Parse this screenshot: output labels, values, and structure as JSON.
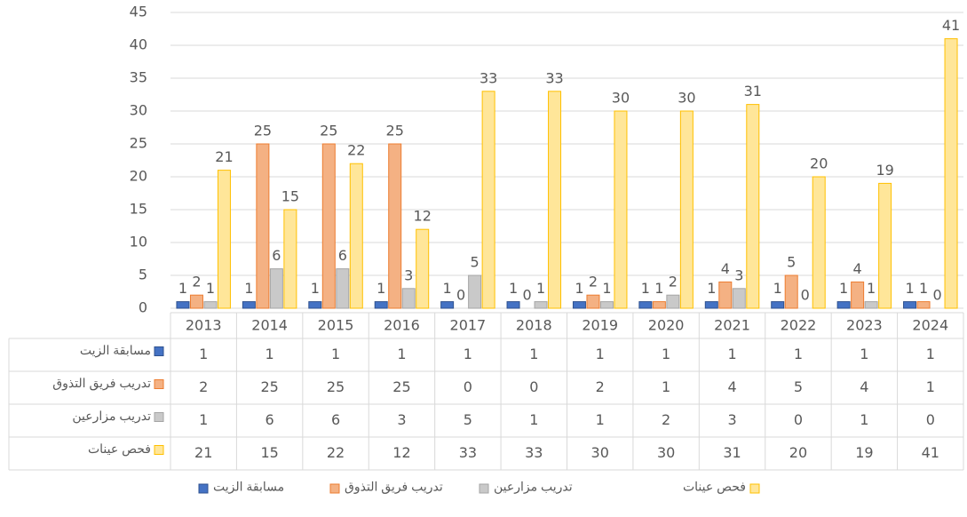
{
  "chart_data": {
    "type": "bar",
    "categories": [
      "2013",
      "2014",
      "2015",
      "2016",
      "2017",
      "2018",
      "2019",
      "2020",
      "2021",
      "2022",
      "2023",
      "2024"
    ],
    "series": [
      {
        "name": "مسابقة الزيت",
        "color": "#4472c4",
        "edge": "#2f528f",
        "values": [
          1,
          1,
          1,
          1,
          1,
          1,
          1,
          1,
          1,
          1,
          1,
          1
        ]
      },
      {
        "name": "تدريب فريق التذوق",
        "color": "#f4b183",
        "edge": "#ed7d31",
        "values": [
          2,
          25,
          25,
          25,
          0,
          0,
          2,
          1,
          4,
          5,
          4,
          1
        ]
      },
      {
        "name": "تدريب مزارعين",
        "color": "#c9c9c9",
        "edge": "#a5a5a5",
        "values": [
          1,
          6,
          6,
          3,
          5,
          1,
          1,
          2,
          3,
          0,
          1,
          0
        ]
      },
      {
        "name": "فحص عينات",
        "color": "#ffe699",
        "edge": "#ffc000",
        "values": [
          21,
          15,
          22,
          12,
          33,
          33,
          30,
          30,
          31,
          20,
          19,
          41
        ]
      }
    ],
    "ylim": [
      0,
      45
    ],
    "yticks": [
      0,
      5,
      10,
      15,
      20,
      25,
      30,
      35,
      40,
      45
    ],
    "grid": true,
    "legend": "bottom"
  }
}
